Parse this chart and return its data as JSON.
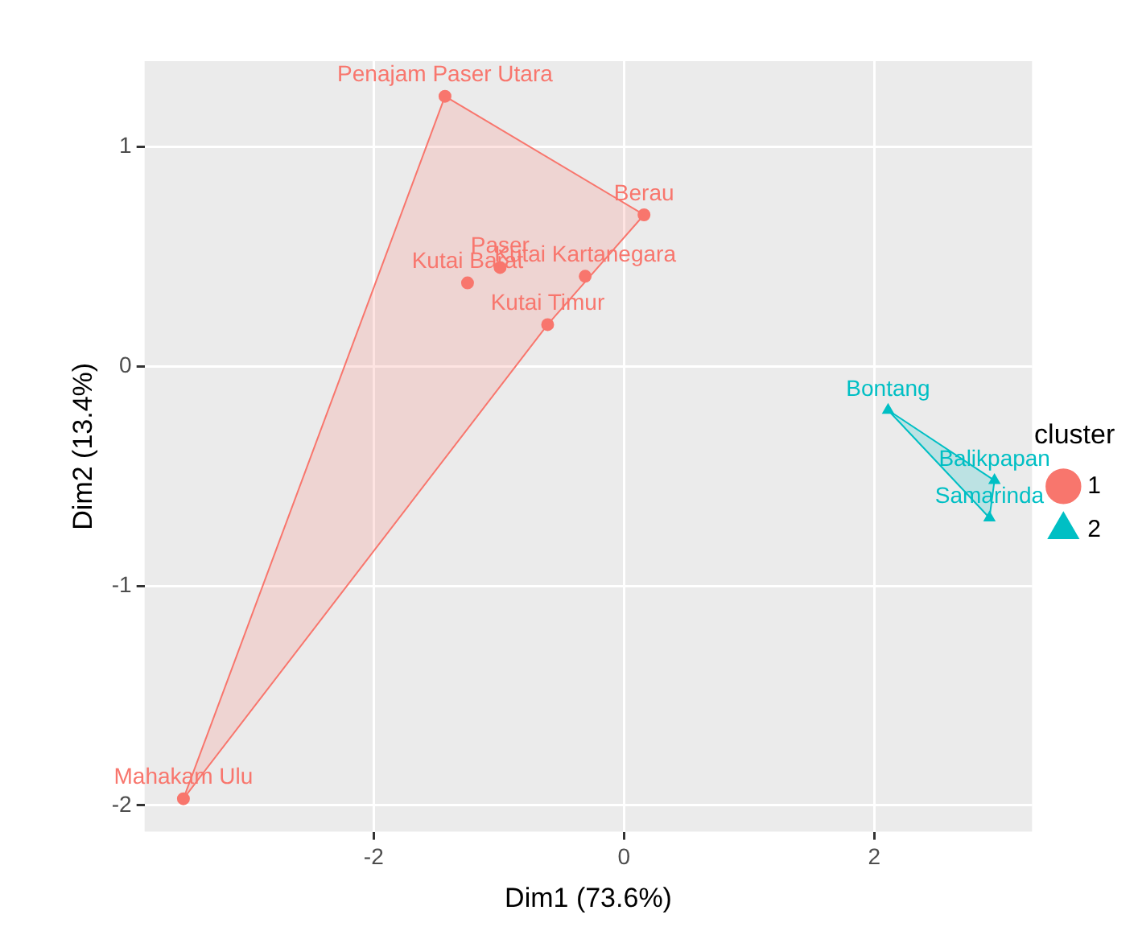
{
  "chart_data": {
    "type": "scatter",
    "xlabel": "Dim1 (73.6%)",
    "ylabel": "Dim2 (13.4%)",
    "legend_title": "cluster",
    "legend": "right",
    "grid": true,
    "xlim": [
      -3.83,
      3.26
    ],
    "ylim": [
      -2.12,
      1.39
    ],
    "xticks": [
      -2,
      0,
      2
    ],
    "yticks": [
      -2,
      -1,
      0,
      1
    ],
    "series": [
      {
        "type": "area",
        "color": "#f8766d",
        "x": [
          -1.43,
          0.16,
          -0.61,
          -3.52,
          -1.43
        ],
        "values": [
          1.23,
          0.69,
          0.19,
          -1.97,
          1.23
        ]
      },
      {
        "type": "area",
        "color": "#00bfc4",
        "x": [
          2.11,
          2.96,
          2.92,
          2.11
        ],
        "values": [
          -0.2,
          -0.52,
          -0.69,
          -0.2
        ]
      },
      {
        "name": "1",
        "color": "#f8766d",
        "marker": "circle",
        "x": [
          -1.43,
          0.16,
          -0.99,
          -1.25,
          -0.31,
          -0.61,
          -3.52
        ],
        "values": [
          1.23,
          0.69,
          0.45,
          0.38,
          0.41,
          0.19,
          -1.97
        ],
        "value_labels": [
          "Penajam Paser Utara",
          "Berau",
          "Paser",
          "Kutai Barat",
          "Kutai Kartanegara",
          "Kutai Timur",
          "Mahakam Ulu"
        ]
      },
      {
        "name": "2",
        "color": "#00bfc4",
        "marker": "triangle",
        "x": [
          2.11,
          2.96,
          2.92
        ],
        "values": [
          -0.2,
          -0.52,
          -0.69
        ],
        "value_labels": [
          "Bontang",
          "Balikpapan",
          "Samarinda"
        ]
      }
    ]
  }
}
